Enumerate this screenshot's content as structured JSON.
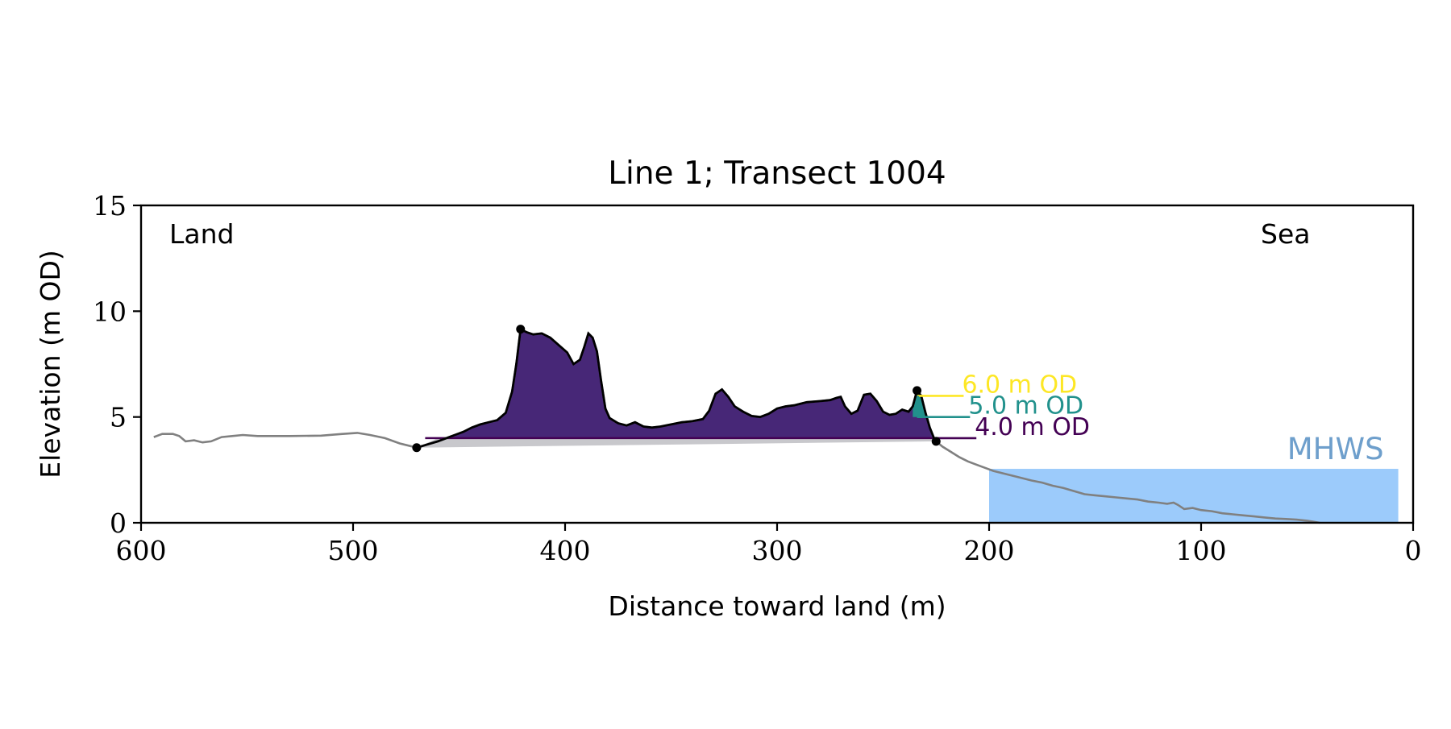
{
  "chart_data": {
    "type": "area",
    "title": "Line 1; Transect 1004",
    "xlabel": "Distance toward land (m)",
    "ylabel": "Elevation (m OD)",
    "xlim": [
      600,
      0
    ],
    "ylim": [
      0,
      15
    ],
    "x_ticks": [
      600,
      500,
      400,
      300,
      200,
      100,
      0
    ],
    "y_ticks": [
      0,
      5,
      10,
      15
    ],
    "grid": false,
    "annotations": {
      "left": "Land",
      "right": "Sea"
    },
    "colors": {
      "profile": "#808080",
      "dune": "#000000",
      "fill_4m": "#472777",
      "fill_5m": "#21918c",
      "fill_6m": "#fde725",
      "line_4m": "#440154",
      "mhws": "#9ccbfb",
      "mhws_label": "#6e9fcc",
      "shadow": "#c8c8cc"
    },
    "levels": [
      {
        "label": "4.0 m OD",
        "elevation": 4.0,
        "color": "#440154",
        "marker_from": 225,
        "marker_to": 206
      },
      {
        "label": "5.0 m OD",
        "elevation": 5.0,
        "color": "#21918c",
        "marker_from": 234,
        "marker_to": 209
      },
      {
        "label": "6.0 m OD",
        "elevation": 6.0,
        "color": "#fde725",
        "marker_from": 233,
        "marker_to": 212
      }
    ],
    "mhws": {
      "label": "MHWS",
      "elevation": 2.55,
      "x_from": 200,
      "x_to": 7
    },
    "dune_endpoints": [
      {
        "x": 470,
        "y": 3.55
      },
      {
        "x": 421,
        "y": 9.15
      },
      {
        "x": 234,
        "y": 6.25
      },
      {
        "x": 225,
        "y": 3.85
      }
    ],
    "profile": [
      [
        594,
        4.05
      ],
      [
        590,
        4.2
      ],
      [
        585,
        4.2
      ],
      [
        582,
        4.1
      ],
      [
        579,
        3.85
      ],
      [
        575,
        3.9
      ],
      [
        571,
        3.8
      ],
      [
        567,
        3.85
      ],
      [
        562,
        4.05
      ],
      [
        557,
        4.1
      ],
      [
        552,
        4.15
      ],
      [
        545,
        4.1
      ],
      [
        530,
        4.1
      ],
      [
        515,
        4.12
      ],
      [
        505,
        4.2
      ],
      [
        498,
        4.25
      ],
      [
        492,
        4.15
      ],
      [
        485,
        4.0
      ],
      [
        478,
        3.75
      ],
      [
        472,
        3.6
      ],
      [
        470,
        3.55
      ],
      [
        465,
        3.7
      ],
      [
        460,
        3.85
      ],
      [
        456,
        4.0
      ],
      [
        452,
        4.15
      ],
      [
        448,
        4.3
      ],
      [
        444,
        4.5
      ],
      [
        440,
        4.65
      ],
      [
        436,
        4.75
      ],
      [
        432,
        4.85
      ],
      [
        428,
        5.2
      ],
      [
        425,
        6.2
      ],
      [
        423,
        7.5
      ],
      [
        421,
        9.15
      ],
      [
        418,
        9.0
      ],
      [
        415,
        8.9
      ],
      [
        411,
        8.95
      ],
      [
        407,
        8.75
      ],
      [
        403,
        8.4
      ],
      [
        399,
        8.05
      ],
      [
        396,
        7.5
      ],
      [
        393,
        7.7
      ],
      [
        391,
        8.3
      ],
      [
        389,
        8.95
      ],
      [
        387,
        8.75
      ],
      [
        385,
        8.1
      ],
      [
        383,
        6.7
      ],
      [
        381,
        5.4
      ],
      [
        379,
        4.95
      ],
      [
        375,
        4.7
      ],
      [
        371,
        4.6
      ],
      [
        367,
        4.75
      ],
      [
        363,
        4.55
      ],
      [
        359,
        4.5
      ],
      [
        355,
        4.55
      ],
      [
        350,
        4.65
      ],
      [
        345,
        4.75
      ],
      [
        340,
        4.8
      ],
      [
        335,
        4.9
      ],
      [
        332,
        5.3
      ],
      [
        329,
        6.1
      ],
      [
        326,
        6.3
      ],
      [
        323,
        5.95
      ],
      [
        320,
        5.5
      ],
      [
        316,
        5.25
      ],
      [
        312,
        5.05
      ],
      [
        308,
        5.0
      ],
      [
        304,
        5.15
      ],
      [
        300,
        5.4
      ],
      [
        296,
        5.5
      ],
      [
        292,
        5.55
      ],
      [
        286,
        5.7
      ],
      [
        280,
        5.75
      ],
      [
        275,
        5.8
      ],
      [
        272,
        5.9
      ],
      [
        270,
        5.95
      ],
      [
        268,
        5.5
      ],
      [
        265,
        5.15
      ],
      [
        262,
        5.3
      ],
      [
        259,
        6.05
      ],
      [
        256,
        6.1
      ],
      [
        253,
        5.75
      ],
      [
        250,
        5.25
      ],
      [
        247,
        5.1
      ],
      [
        244,
        5.15
      ],
      [
        241,
        5.35
      ],
      [
        238,
        5.25
      ],
      [
        236,
        5.5
      ],
      [
        234,
        6.25
      ],
      [
        232,
        6.0
      ],
      [
        230,
        5.2
      ],
      [
        228,
        4.5
      ],
      [
        226,
        4.0
      ],
      [
        225,
        3.85
      ],
      [
        222,
        3.6
      ],
      [
        218,
        3.35
      ],
      [
        214,
        3.1
      ],
      [
        210,
        2.9
      ],
      [
        206,
        2.75
      ],
      [
        202,
        2.6
      ],
      [
        198,
        2.45
      ],
      [
        194,
        2.35
      ],
      [
        190,
        2.25
      ],
      [
        186,
        2.15
      ],
      [
        180,
        2.0
      ],
      [
        175,
        1.9
      ],
      [
        170,
        1.75
      ],
      [
        165,
        1.65
      ],
      [
        160,
        1.5
      ],
      [
        155,
        1.35
      ],
      [
        150,
        1.3
      ],
      [
        145,
        1.25
      ],
      [
        140,
        1.2
      ],
      [
        135,
        1.15
      ],
      [
        130,
        1.1
      ],
      [
        125,
        1.0
      ],
      [
        120,
        0.95
      ],
      [
        116,
        0.9
      ],
      [
        113,
        0.95
      ],
      [
        111,
        0.85
      ],
      [
        108,
        0.65
      ],
      [
        104,
        0.7
      ],
      [
        100,
        0.6
      ],
      [
        95,
        0.55
      ],
      [
        90,
        0.45
      ],
      [
        85,
        0.4
      ],
      [
        80,
        0.35
      ],
      [
        75,
        0.3
      ],
      [
        70,
        0.25
      ],
      [
        65,
        0.2
      ],
      [
        60,
        0.18
      ],
      [
        55,
        0.15
      ],
      [
        50,
        0.1
      ],
      [
        47,
        0.05
      ],
      [
        44,
        0.0
      ]
    ]
  }
}
